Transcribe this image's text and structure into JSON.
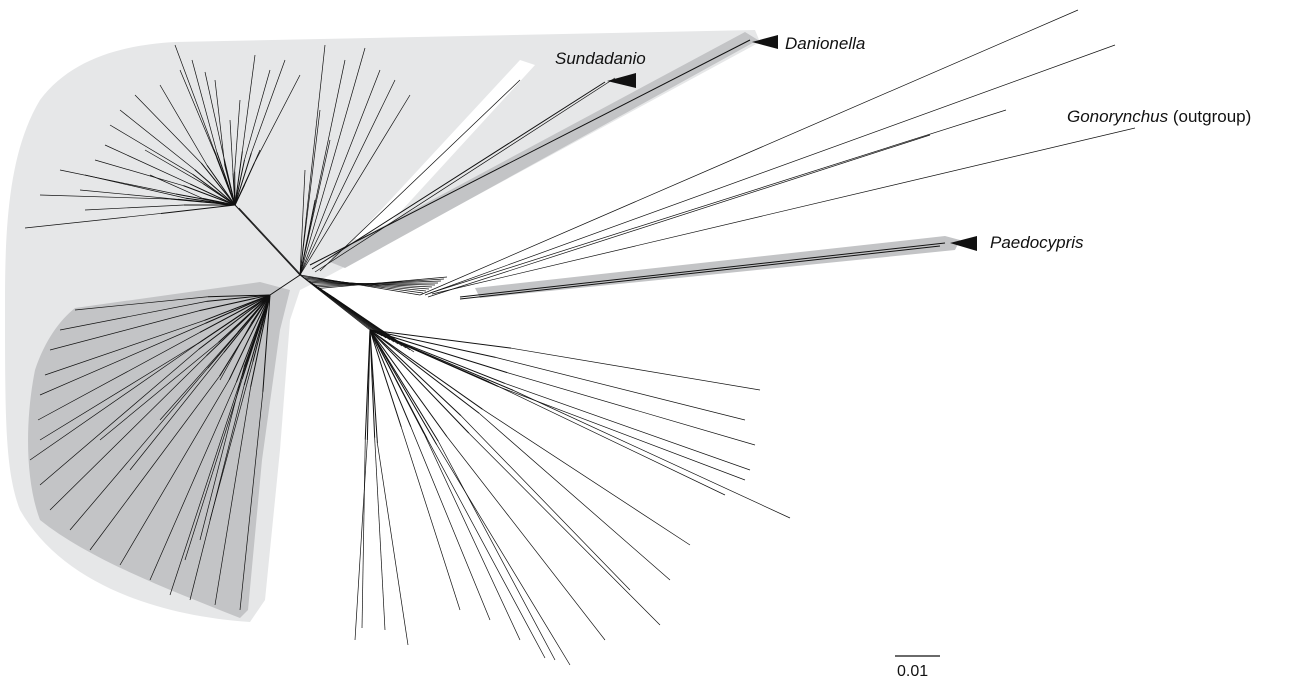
{
  "figure": {
    "labels": {
      "danionella": "Danionella",
      "sundadanio": "Sundadanio",
      "gonorynchus_italic": "Gonorynchus",
      "gonorynchus_plain": " (outgroup)",
      "paedocypris": "Paedocypris"
    },
    "scale_bar": {
      "label": "0.01"
    },
    "colors": {
      "light_shading": "#e6e7e8",
      "dark_shading": "#c3c4c6",
      "edges": "#111111",
      "background": "#ffffff"
    }
  }
}
